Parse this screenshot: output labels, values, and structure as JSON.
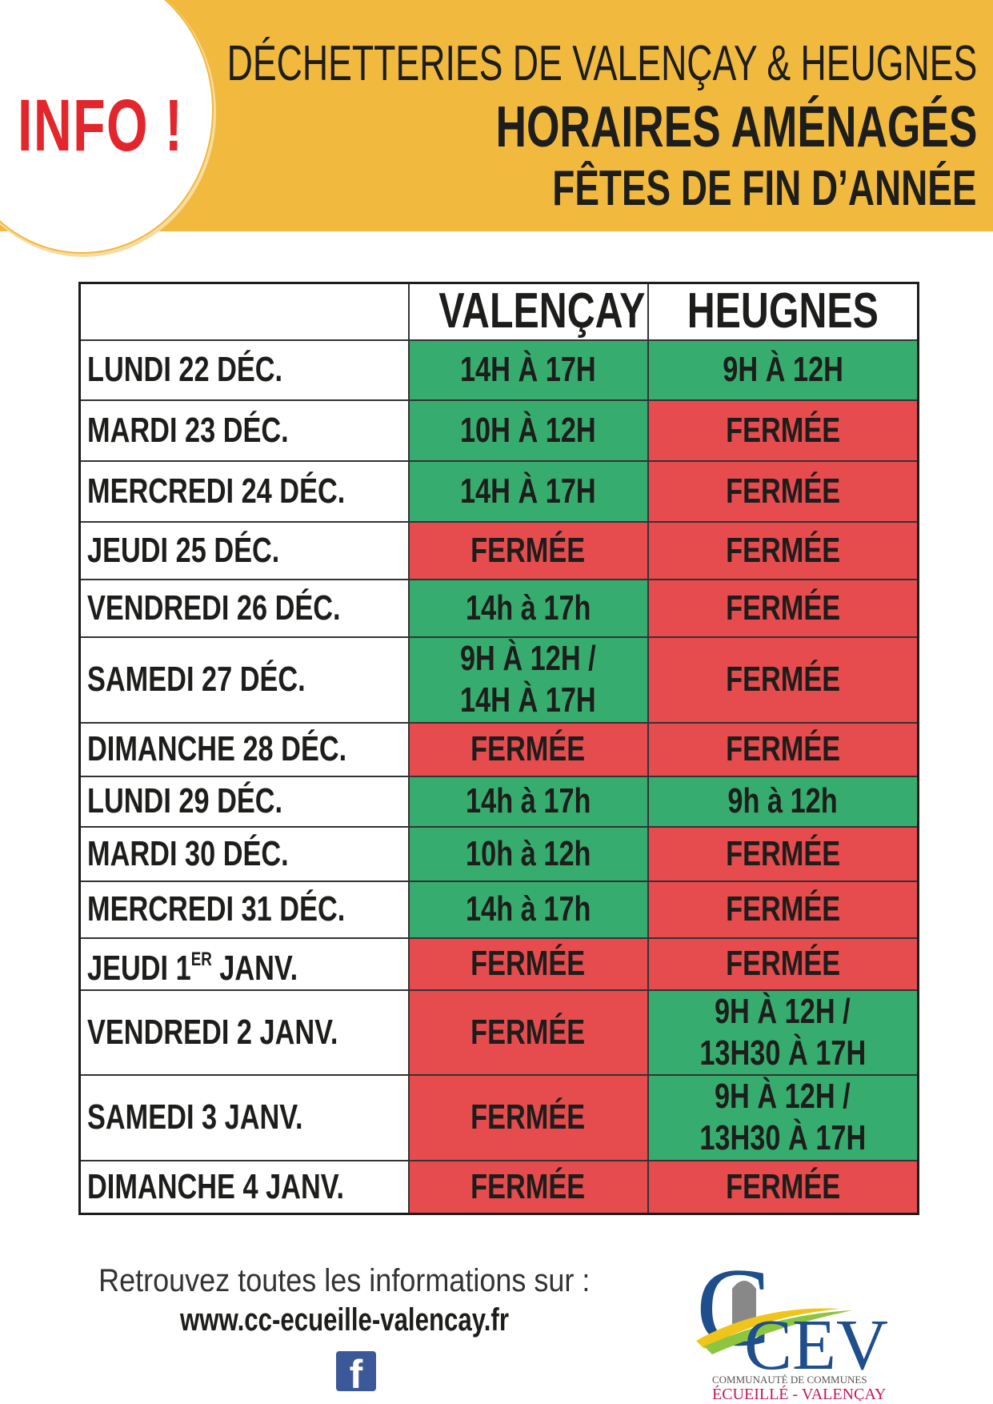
{
  "header": {
    "badge": "INFO !",
    "line1": "DÉCHETTERIES DE VALENÇAY & HEUGNES",
    "line2": "HORAIRES AMÉNAGÉS",
    "line3": "FÊTES DE FIN D’ANNÉE"
  },
  "colors": {
    "banner": "#f1b93d",
    "open": "#36ad6f",
    "closed": "#e64b4e",
    "badge": "#e3262b"
  },
  "table": {
    "columns": [
      "",
      "VALENÇAY",
      "HEUGNES"
    ],
    "rows": [
      {
        "day": "LUNDI 22 DÉC.",
        "valencay": "14H À 17H",
        "heugnes": "9H À 12H",
        "v_open": true,
        "h_open": true
      },
      {
        "day": "MARDI 23 DÉC.",
        "valencay": "10H À 12H",
        "heugnes": "FERMÉE",
        "v_open": true,
        "h_open": false
      },
      {
        "day": "MERCREDI 24 DÉC.",
        "valencay": "14H À 17H",
        "heugnes": "FERMÉE",
        "v_open": true,
        "h_open": false
      },
      {
        "day": "JEUDI 25 DÉC.",
        "valencay": "FERMÉE",
        "heugnes": "FERMÉE",
        "v_open": false,
        "h_open": false
      },
      {
        "day": "VENDREDI 26 DÉC.",
        "valencay": "14h à 17h",
        "heugnes": "FERMÉE",
        "v_open": true,
        "h_open": false
      },
      {
        "day": "SAMEDI 27 DÉC.",
        "valencay": "9H À 12H /",
        "valencay2": "14H À 17H",
        "heugnes": "FERMÉE",
        "v_open": true,
        "h_open": false
      },
      {
        "day": "DIMANCHE 28 DÉC.",
        "valencay": "FERMÉE",
        "heugnes": "FERMÉE",
        "v_open": false,
        "h_open": false
      },
      {
        "day": "LUNDI 29 DÉC.",
        "valencay": "14h à 17h",
        "heugnes": "9h à 12h",
        "v_open": true,
        "h_open": true
      },
      {
        "day": "MARDI 30 DÉC.",
        "valencay": "10h à 12h",
        "heugnes": "FERMÉE",
        "v_open": true,
        "h_open": false
      },
      {
        "day": "MERCREDI 31 DÉC.",
        "valencay": "14h à 17h",
        "heugnes": "FERMÉE",
        "v_open": true,
        "h_open": false
      },
      {
        "day": "JEUDI 1",
        "day_sup": "ER",
        "day_rest": " JANV.",
        "valencay": "FERMÉE",
        "heugnes": "FERMÉE",
        "v_open": false,
        "h_open": false
      },
      {
        "day": "VENDREDI 2 JANV.",
        "valencay": "FERMÉE",
        "heugnes": "9H À 12H /",
        "heugnes2": "13H30 À 17H",
        "v_open": false,
        "h_open": true
      },
      {
        "day": "SAMEDI 3 JANV.",
        "valencay": "FERMÉE",
        "heugnes": "9H À 12H /",
        "heugnes2": "13H30 À 17H",
        "v_open": false,
        "h_open": true
      },
      {
        "day": "DIMANCHE 4 JANV.",
        "valencay": "FERMÉE",
        "heugnes": "FERMÉE",
        "v_open": false,
        "h_open": false
      }
    ]
  },
  "footer": {
    "info_text": "Retrouvez toutes les informations sur :",
    "url": "www.cc-ecueille-valencay.fr",
    "social_icon": "facebook-icon",
    "logo": {
      "letters": "CCEV",
      "subtitle": "COMMUNAUTÉ DE COMMUNES",
      "name": "ÉCUEILLÉ - VALENÇAY"
    }
  }
}
